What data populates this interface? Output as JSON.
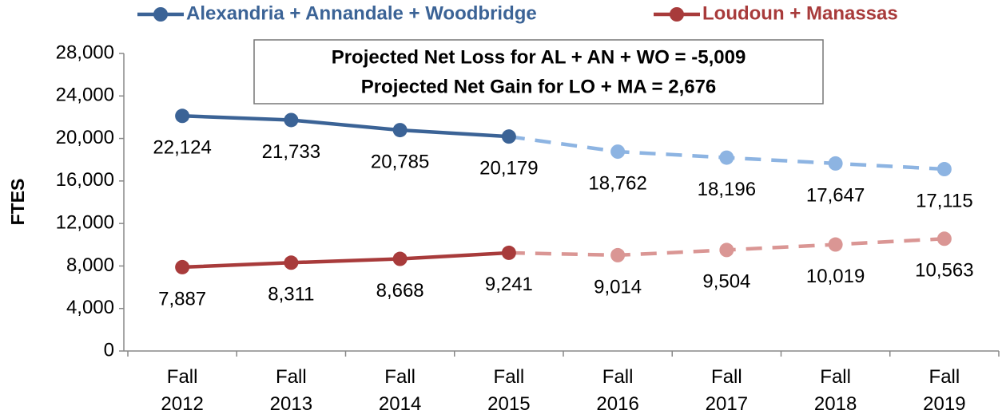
{
  "chart_data": {
    "type": "line",
    "y_label": "FTES",
    "annotations": [
      "Projected Net Loss for AL + AN + WO = -5,009",
      "Projected Net Gain for LO + MA = 2,676"
    ],
    "categories": [
      "Fall 2012",
      "Fall 2013",
      "Fall 2014",
      "Fall 2015",
      "Fall 2016",
      "Fall 2017",
      "Fall 2018",
      "Fall 2019"
    ],
    "dashed_from": 3,
    "series": [
      {
        "name": "Alexandria + Annandale + Woodbridge",
        "color": "#3b6396",
        "projected_color": "#8db4e2",
        "values": [
          22124,
          21733,
          20785,
          20179,
          18762,
          18196,
          17647,
          17115
        ],
        "value_labels": [
          "22,124",
          "21,733",
          "20,785",
          "20,179",
          "18,762",
          "18,196",
          "17,647",
          "17,115"
        ]
      },
      {
        "name": "Loudoun + Manassas",
        "color": "#a83b3b",
        "projected_color": "#da9694",
        "values": [
          7887,
          8311,
          8668,
          9241,
          9014,
          9504,
          10019,
          10563
        ],
        "value_labels": [
          "7,887",
          "8,311",
          "8,668",
          "9,241",
          "9,014",
          "9,504",
          "10,019",
          "10,563"
        ]
      }
    ],
    "ylim": [
      0,
      28000
    ],
    "yticks": [
      0,
      {
        "value": 4000,
        "label": "4,000"
      },
      {
        "value": 8000,
        "label": "8,000"
      },
      {
        "value": 12000,
        "label": "12,000"
      },
      {
        "value": 16000,
        "label": "16,000"
      },
      {
        "value": 20000,
        "label": "20,000"
      },
      {
        "value": 24000,
        "label": "24,000"
      },
      {
        "value": 28000,
        "label": "28,000"
      }
    ],
    "grid": false
  }
}
